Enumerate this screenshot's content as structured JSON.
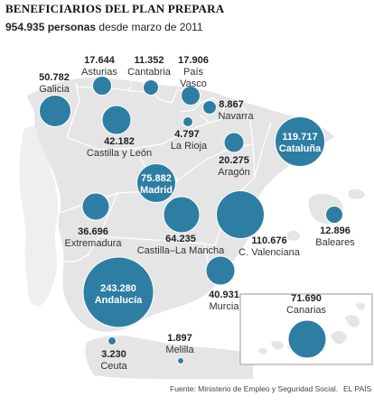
{
  "title": "BENEFICIARIOS DEL PLAN PREPARA",
  "subtitle": {
    "highlight": "954.935 personas",
    "rest": " desde marzo de 2011"
  },
  "source": "Fuente: Ministerio de Empleo y Seguridad Social.",
  "credit": "EL PAÍS",
  "colors": {
    "bubble": "#2e7ea4",
    "land": "#e5e5e5",
    "land_border": "#ffffff",
    "frame": "#999999"
  },
  "regions": [
    {
      "id": "galicia",
      "name": "Galicia",
      "value": "50.782",
      "inside": false
    },
    {
      "id": "asturias",
      "name": "Asturias",
      "value": "17.644",
      "inside": false
    },
    {
      "id": "cantabria",
      "name": "Cantabria",
      "value": "11.352",
      "inside": false
    },
    {
      "id": "pais-vasco",
      "name": "País Vasco",
      "value": "17.906",
      "inside": false
    },
    {
      "id": "navarra",
      "name": "Navarra",
      "value": "8.867",
      "inside": false
    },
    {
      "id": "la-rioja",
      "name": "La Rioja",
      "value": "4.797",
      "inside": false
    },
    {
      "id": "castilla-leon",
      "name": "Castilla y León",
      "value": "42.182",
      "inside": false
    },
    {
      "id": "aragon",
      "name": "Aragón",
      "value": "20.275",
      "inside": false
    },
    {
      "id": "cataluna",
      "name": "Cataluña",
      "value": "119.717",
      "inside": true
    },
    {
      "id": "madrid",
      "name": "Madrid",
      "value": "75.882",
      "inside": true
    },
    {
      "id": "extremadura",
      "name": "Extremadura",
      "value": "36.696",
      "inside": false
    },
    {
      "id": "castilla-la-mancha",
      "name": "Castilla–La Mancha",
      "value": "64.235",
      "inside": false
    },
    {
      "id": "c-valenciana",
      "name": "C. Valenciana",
      "value": "110.676",
      "inside": false
    },
    {
      "id": "baleares",
      "name": "Baleares",
      "value": "12.896",
      "inside": false
    },
    {
      "id": "murcia",
      "name": "Murcia",
      "value": "40.931",
      "inside": false
    },
    {
      "id": "andalucia",
      "name": "Andalucía",
      "value": "243.280",
      "inside": true
    },
    {
      "id": "canarias",
      "name": "Canarias",
      "value": "71.690",
      "inside": false
    },
    {
      "id": "ceuta",
      "name": "Ceuta",
      "value": "3.230",
      "inside": false
    },
    {
      "id": "melilla",
      "name": "Melilla",
      "value": "1.897",
      "inside": false
    }
  ]
}
